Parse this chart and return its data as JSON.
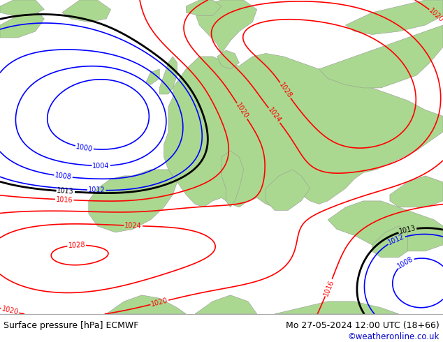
{
  "title_left": "Surface pressure [hPa] ECMWF",
  "title_right": "Mo 27-05-2024 12:00 UTC (18+66)",
  "credit": "©weatheronline.co.uk",
  "ocean_color": "#e8e8e8",
  "land_color": "#aad890",
  "figsize": [
    6.34,
    4.9
  ],
  "dpi": 100,
  "bottom_bar_color": "#ffffff",
  "title_fontsize": 9,
  "credit_color": "#0000cc",
  "line_color_low": "#0000ff",
  "line_color_high": "#ff0000",
  "line_color_mid": "#000000"
}
